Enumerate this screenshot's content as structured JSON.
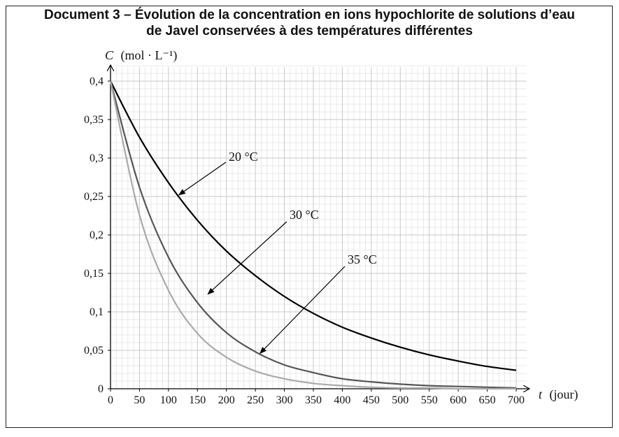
{
  "title_line1": "Document 3 – Évolution de la concentration en ions hypochlorite de solutions d’eau",
  "title_line2": "de Javel conservées à des températures différentes",
  "chart_data": {
    "type": "line",
    "ylabel_var": "C",
    "ylabel_unit": "(mol · L⁻¹)",
    "xlabel_var": "t",
    "xlabel_unit": "(jour)",
    "xlim": [
      0,
      700
    ],
    "ylim": [
      0,
      0.4
    ],
    "x_ticks": [
      "0",
      "50",
      "100",
      "150",
      "200",
      "250",
      "300",
      "350",
      "400",
      "450",
      "500",
      "550",
      "600",
      "650",
      "700"
    ],
    "y_ticks": [
      "0",
      "0,05",
      "0,1",
      "0,15",
      "0,2",
      "0,25",
      "0,3",
      "0,35",
      "0,4"
    ],
    "grid": true,
    "series": [
      {
        "name": "20 °C",
        "color": "#000000",
        "x": [
          0,
          50,
          100,
          150,
          200,
          250,
          300,
          350,
          400,
          450,
          500,
          550,
          600,
          650,
          700
        ],
        "values": [
          0.4,
          0.327,
          0.268,
          0.219,
          0.179,
          0.147,
          0.12,
          0.098,
          0.08,
          0.066,
          0.054,
          0.044,
          0.036,
          0.029,
          0.024
        ]
      },
      {
        "name": "30 °C",
        "color": "#555555",
        "x": [
          0,
          50,
          100,
          150,
          200,
          250,
          300,
          350,
          400,
          450,
          500,
          550,
          600,
          650,
          700
        ],
        "values": [
          0.4,
          0.262,
          0.171,
          0.112,
          0.073,
          0.048,
          0.031,
          0.021,
          0.013,
          0.009,
          0.006,
          0.004,
          0.003,
          0.002,
          0.001
        ]
      },
      {
        "name": "35 °C",
        "color": "#aaaaaa",
        "x": [
          0,
          50,
          100,
          150,
          200,
          250,
          300,
          350,
          400,
          450,
          500,
          550,
          600,
          650,
          700
        ],
        "values": [
          0.4,
          0.226,
          0.128,
          0.072,
          0.041,
          0.023,
          0.013,
          0.007,
          0.004,
          0.002,
          0.001,
          0.001,
          0.0,
          0.0,
          0.0
        ]
      }
    ],
    "annotations": [
      {
        "text": "20 °C",
        "series": "20 °C",
        "target_x": 118,
        "target_y": 0.252
      },
      {
        "text": "30 °C",
        "series": "30 °C",
        "target_x": 168,
        "target_y": 0.123
      },
      {
        "text": "35 °C",
        "series": "35 °C",
        "target_x": 258,
        "target_y": 0.046
      }
    ]
  }
}
